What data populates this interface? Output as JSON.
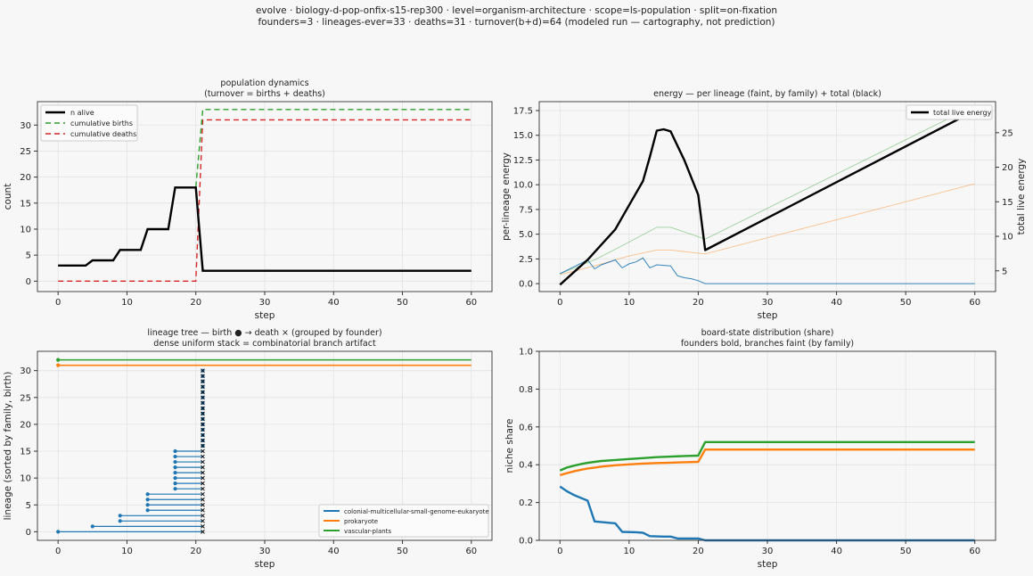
{
  "suptitle": {
    "line1": "evolve · biology-d-pop-onfix-s15-rep300 · level=organism-architecture · scope=ls-population · split=on-fixation",
    "line2": "founders=3 · lineages-ever=33 · deaths=31 · turnover(b+d)=64   (modeled run — cartography, not prediction)"
  },
  "colors": {
    "black": "#000000",
    "births": "#2ca02c",
    "deaths": "#d62728",
    "eukaryote": "#1f77b4",
    "prokaryote": "#ff7f0e",
    "plants": "#2ca02c"
  },
  "chart_data": [
    {
      "id": "population",
      "type": "line",
      "title": "population dynamics",
      "subtitle": "(turnover = births + deaths)",
      "xlabel": "step",
      "ylabel": "count",
      "xlim": [
        -3,
        63
      ],
      "ylim": [
        -2,
        34.5
      ],
      "xticks": [
        0,
        10,
        20,
        30,
        40,
        50,
        60
      ],
      "yticks": [
        0,
        5,
        10,
        15,
        20,
        25,
        30
      ],
      "legend_position": "top-left",
      "grid": true,
      "series": [
        {
          "name": "n alive",
          "color": "#000000",
          "width": 2.4,
          "dash": "",
          "x": [
            0,
            4,
            5,
            8,
            9,
            12,
            13,
            16,
            17,
            20,
            21,
            60
          ],
          "y": [
            3,
            3,
            4,
            4,
            6,
            6,
            10,
            10,
            18,
            18,
            2,
            2
          ]
        },
        {
          "name": "cumulative births",
          "color": "#2ca02c",
          "width": 1.4,
          "dash": "6,4",
          "x": [
            0,
            4,
            5,
            8,
            9,
            12,
            13,
            16,
            17,
            20,
            21,
            60
          ],
          "y": [
            3,
            3,
            4,
            4,
            6,
            6,
            10,
            10,
            18,
            18,
            33,
            33
          ]
        },
        {
          "name": "cumulative deaths",
          "color": "#d62728",
          "width": 1.4,
          "dash": "6,4",
          "x": [
            0,
            20,
            21,
            60
          ],
          "y": [
            0,
            0,
            31,
            31
          ]
        }
      ]
    },
    {
      "id": "energy",
      "type": "line",
      "title": "energy — per lineage (faint, by family) + total (black)",
      "xlabel": "step",
      "ylabel": "per-lineage energy",
      "y2label": "total live energy",
      "xlim": [
        -3,
        63
      ],
      "ylim": [
        -0.8,
        18.4
      ],
      "y2lim": [
        2.0,
        29.5
      ],
      "xticks": [
        0,
        10,
        20,
        30,
        40,
        50,
        60
      ],
      "yticks": [
        0.0,
        2.5,
        5.0,
        7.5,
        10.0,
        12.5,
        15.0,
        17.5
      ],
      "y2ticks": [
        5,
        10,
        15,
        20,
        25
      ],
      "legend_position": "top-right",
      "grid": true,
      "series": [
        {
          "name": "total live energy",
          "axis": "right",
          "color": "#000000",
          "width": 2.4,
          "x": [
            0,
            2,
            4,
            6,
            8,
            10,
            12,
            13,
            14,
            15,
            16,
            18,
            20,
            21,
            60
          ],
          "y": [
            3.0,
            4.8,
            6.6,
            8.8,
            11.0,
            14.5,
            18.0,
            21.5,
            25.3,
            25.5,
            25.2,
            21.0,
            16.0,
            8.0,
            28.2
          ]
        },
        {
          "color": "#2ca02c",
          "width": 0.9,
          "opacity": 0.45,
          "axis": "left",
          "x": [
            0,
            5,
            10,
            14,
            16,
            21,
            60
          ],
          "y": [
            1.0,
            2.4,
            4.2,
            5.7,
            5.7,
            4.5,
            18.0
          ]
        },
        {
          "color": "#ff7f0e",
          "width": 0.9,
          "opacity": 0.45,
          "axis": "left",
          "x": [
            0,
            5,
            10,
            14,
            16,
            21,
            60
          ],
          "y": [
            0.9,
            1.8,
            2.8,
            3.4,
            3.4,
            3.0,
            10.1
          ]
        },
        {
          "color": "#1f77b4",
          "width": 1.0,
          "opacity": 0.9,
          "axis": "left",
          "x": [
            0,
            2,
            4,
            5,
            6,
            8,
            9,
            10,
            11,
            12,
            13,
            14,
            16,
            17,
            18,
            19,
            20,
            21,
            60
          ],
          "y": [
            1.0,
            1.7,
            2.4,
            1.5,
            1.9,
            2.4,
            1.6,
            2.0,
            2.2,
            2.6,
            1.6,
            1.9,
            1.8,
            0.8,
            0.6,
            0.5,
            0.3,
            0.0,
            0.0
          ]
        }
      ]
    },
    {
      "id": "lineage-tree",
      "type": "timeline",
      "title": "lineage tree — birth ● → death ×  (grouped by founder)",
      "subtitle": "dense uniform stack = combinatorial branch artifact",
      "xlabel": "step",
      "ylabel": "lineage (sorted by family, birth)",
      "xlim": [
        -3,
        63
      ],
      "ylim": [
        -1.6,
        33.6
      ],
      "xticks": [
        0,
        10,
        20,
        30,
        40,
        50,
        60
      ],
      "yticks": [
        0,
        5,
        10,
        15,
        20,
        25,
        30
      ],
      "legend_position": "bottom-right",
      "grid": true,
      "legend": [
        {
          "name": "colonial-multicellular-small-genome-eukaryote",
          "color": "#1f77b4"
        },
        {
          "name": "prokaryote",
          "color": "#ff7f0e"
        },
        {
          "name": "vascular-plants",
          "color": "#2ca02c"
        }
      ],
      "segments": [
        {
          "lineage": 0,
          "birth": 0,
          "death": 21,
          "family": 0
        },
        {
          "lineage": 1,
          "birth": 5,
          "death": 21,
          "family": 0
        },
        {
          "lineage": 2,
          "birth": 9,
          "death": 21,
          "family": 0
        },
        {
          "lineage": 3,
          "birth": 9,
          "death": 21,
          "family": 0
        },
        {
          "lineage": 4,
          "birth": 13,
          "death": 21,
          "family": 0
        },
        {
          "lineage": 5,
          "birth": 13,
          "death": 21,
          "family": 0
        },
        {
          "lineage": 6,
          "birth": 13,
          "death": 21,
          "family": 0
        },
        {
          "lineage": 7,
          "birth": 13,
          "death": 21,
          "family": 0
        },
        {
          "lineage": 8,
          "birth": 17,
          "death": 21,
          "family": 0
        },
        {
          "lineage": 9,
          "birth": 17,
          "death": 21,
          "family": 0
        },
        {
          "lineage": 10,
          "birth": 17,
          "death": 21,
          "family": 0
        },
        {
          "lineage": 11,
          "birth": 17,
          "death": 21,
          "family": 0
        },
        {
          "lineage": 12,
          "birth": 17,
          "death": 21,
          "family": 0
        },
        {
          "lineage": 13,
          "birth": 17,
          "death": 21,
          "family": 0
        },
        {
          "lineage": 14,
          "birth": 17,
          "death": 21,
          "family": 0
        },
        {
          "lineage": 15,
          "birth": 17,
          "death": 21,
          "family": 0
        },
        {
          "lineage": 16,
          "birth": 21,
          "death": 21,
          "family": 0
        },
        {
          "lineage": 17,
          "birth": 21,
          "death": 21,
          "family": 0
        },
        {
          "lineage": 18,
          "birth": 21,
          "death": 21,
          "family": 0
        },
        {
          "lineage": 19,
          "birth": 21,
          "death": 21,
          "family": 0
        },
        {
          "lineage": 20,
          "birth": 21,
          "death": 21,
          "family": 0
        },
        {
          "lineage": 21,
          "birth": 21,
          "death": 21,
          "family": 0
        },
        {
          "lineage": 22,
          "birth": 21,
          "death": 21,
          "family": 0
        },
        {
          "lineage": 23,
          "birth": 21,
          "death": 21,
          "family": 0
        },
        {
          "lineage": 24,
          "birth": 21,
          "death": 21,
          "family": 0
        },
        {
          "lineage": 25,
          "birth": 21,
          "death": 21,
          "family": 0
        },
        {
          "lineage": 26,
          "birth": 21,
          "death": 21,
          "family": 0
        },
        {
          "lineage": 27,
          "birth": 21,
          "death": 21,
          "family": 0
        },
        {
          "lineage": 28,
          "birth": 21,
          "death": 21,
          "family": 0
        },
        {
          "lineage": 29,
          "birth": 21,
          "death": 21,
          "family": 0
        },
        {
          "lineage": 30,
          "birth": 21,
          "death": 21,
          "family": 0
        },
        {
          "lineage": 31,
          "birth": 0,
          "death": null,
          "end": 60,
          "family": 1
        },
        {
          "lineage": 32,
          "birth": 0,
          "death": null,
          "end": 60,
          "family": 2
        }
      ]
    },
    {
      "id": "board-state",
      "type": "line",
      "title": "board-state distribution (share)",
      "subtitle": "founders bold, branches faint (by family)",
      "xlabel": "step",
      "ylabel": "niche share",
      "xlim": [
        -3,
        63
      ],
      "ylim": [
        0.0,
        1.0
      ],
      "xticks": [
        0,
        10,
        20,
        30,
        40,
        50,
        60
      ],
      "yticks": [
        0.0,
        0.2,
        0.4,
        0.6,
        0.8,
        1.0
      ],
      "grid": true,
      "series": [
        {
          "color": "#2ca02c",
          "width": 2.4,
          "x": [
            0,
            1,
            2,
            3,
            4,
            5,
            6,
            8,
            10,
            12,
            14,
            16,
            18,
            20,
            21,
            60
          ],
          "y": [
            0.37,
            0.385,
            0.395,
            0.403,
            0.41,
            0.415,
            0.42,
            0.425,
            0.43,
            0.435,
            0.44,
            0.443,
            0.446,
            0.448,
            0.52,
            0.52
          ]
        },
        {
          "color": "#ff7f0e",
          "width": 2.4,
          "x": [
            0,
            1,
            2,
            3,
            4,
            5,
            6,
            8,
            10,
            12,
            14,
            16,
            18,
            20,
            21,
            60
          ],
          "y": [
            0.345,
            0.355,
            0.365,
            0.373,
            0.38,
            0.385,
            0.39,
            0.397,
            0.402,
            0.406,
            0.409,
            0.411,
            0.413,
            0.415,
            0.48,
            0.48
          ]
        },
        {
          "color": "#1f77b4",
          "width": 2.4,
          "x": [
            0,
            1,
            2,
            3,
            4,
            5,
            8,
            9,
            11,
            12,
            13,
            15,
            16,
            17,
            20,
            21,
            60
          ],
          "y": [
            0.285,
            0.26,
            0.24,
            0.225,
            0.21,
            0.1,
            0.09,
            0.045,
            0.043,
            0.04,
            0.022,
            0.02,
            0.02,
            0.01,
            0.01,
            0.0,
            0.0
          ]
        }
      ]
    }
  ]
}
